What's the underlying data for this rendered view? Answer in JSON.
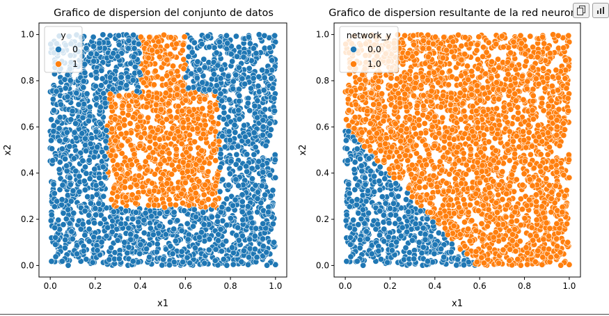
{
  "toolbar": {
    "copy_icon": "copy-icon",
    "chart_icon": "chart-icon"
  },
  "colors": {
    "class0": "#1f77b4",
    "class1": "#ff7f0e",
    "marker_edge": "#ffffff",
    "axis": "#000000"
  },
  "chart_data": [
    {
      "type": "scatter",
      "title": "Grafico de dispersion del conjunto de datos",
      "xlabel": "x1",
      "ylabel": "x2",
      "xlim": [
        -0.05,
        1.05
      ],
      "ylim": [
        -0.05,
        1.05
      ],
      "xticks": [
        "0.0",
        "0.2",
        "0.4",
        "0.6",
        "0.8",
        "1.0"
      ],
      "yticks": [
        "0.0",
        "0.2",
        "0.4",
        "0.6",
        "0.8",
        "1.0"
      ],
      "grid": false,
      "legend": {
        "title": "y",
        "position": "top-left",
        "entries": [
          {
            "label": "0",
            "color": "#1f77b4"
          },
          {
            "label": "1",
            "color": "#ff7f0e"
          }
        ]
      },
      "class_regions": [
        {
          "class": "1",
          "x": [
            0.25,
            0.75
          ],
          "y": [
            0.25,
            0.75
          ]
        },
        {
          "class": "1",
          "x": [
            0.4,
            0.6
          ],
          "y": [
            0.75,
            1.0
          ]
        }
      ],
      "default_class": "0",
      "n_points": 3000
    },
    {
      "type": "scatter",
      "title": "Grafico de dispersion resultante de la red neuronal",
      "xlabel": "x1",
      "ylabel": "x2",
      "xlim": [
        -0.05,
        1.05
      ],
      "ylim": [
        -0.05,
        1.05
      ],
      "xticks": [
        "0.0",
        "0.2",
        "0.4",
        "0.6",
        "0.8",
        "1.0"
      ],
      "yticks": [
        "0.0",
        "0.2",
        "0.4",
        "0.6",
        "0.8",
        "1.0"
      ],
      "grid": false,
      "legend": {
        "title": "network_y",
        "position": "top-left",
        "entries": [
          {
            "label": "0.0",
            "color": "#1f77b4"
          },
          {
            "label": "1.0",
            "color": "#ff7f0e"
          }
        ]
      },
      "decision_boundary": {
        "class_0_where": "x2 < 0.6 - 1.03 * x1",
        "points": [
          [
            0.0,
            0.6
          ],
          [
            0.58,
            0.0
          ]
        ]
      },
      "n_points": 3000
    }
  ]
}
